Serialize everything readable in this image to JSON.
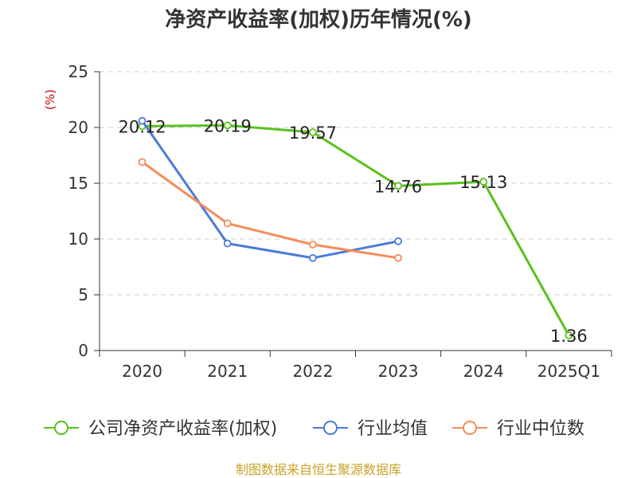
{
  "chart_data": {
    "type": "line",
    "title": "净资产收益率(加权)历年情况(%)",
    "ylabel": "(%)",
    "ylim": [
      0,
      25
    ],
    "yticks": [
      0,
      5,
      10,
      15,
      20,
      25
    ],
    "grid": true,
    "legend_position": "bottom",
    "categories": [
      "2020",
      "2021",
      "2022",
      "2023",
      "2024",
      "2025Q1"
    ],
    "series": [
      {
        "name": "公司净资产收益率(加权)",
        "color": "#5ac01e",
        "labels": true,
        "values": [
          20.12,
          20.19,
          19.57,
          14.76,
          15.13,
          1.36
        ]
      },
      {
        "name": "行业均值",
        "color": "#4b7bd8",
        "labels": false,
        "values": [
          20.6,
          9.6,
          8.3,
          9.8,
          null,
          null
        ]
      },
      {
        "name": "行业中位数",
        "color": "#f58c5a",
        "labels": false,
        "values": [
          16.9,
          11.4,
          9.5,
          8.3,
          null,
          null
        ]
      }
    ],
    "source": "制图数据来自恒生聚源数据库"
  }
}
